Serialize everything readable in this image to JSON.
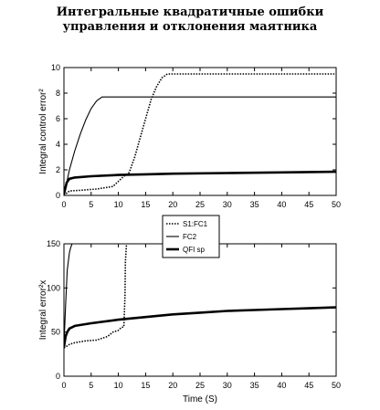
{
  "title": {
    "line1": "Интегральные квадратичные ошибки",
    "line2": "управления и отклонения маятника"
  },
  "chart_data": [
    {
      "type": "line",
      "ylabel": "Integral control error²",
      "xlabel": "",
      "xlim": [
        0,
        50
      ],
      "ylim": [
        0,
        10
      ],
      "xticks": [
        "0",
        "5",
        "10",
        "15",
        "20",
        "25",
        "30",
        "35",
        "40",
        "45",
        "50"
      ],
      "yticks": [
        "0",
        "2",
        "4",
        "6",
        "8",
        "10"
      ],
      "series": [
        {
          "name": "S1:FC1",
          "style": "dotted",
          "x": [
            0,
            1,
            3,
            6,
            9,
            11,
            12,
            13,
            14,
            15,
            16,
            17,
            18,
            19,
            20,
            50
          ],
          "y": [
            0,
            0.35,
            0.4,
            0.5,
            0.7,
            1.5,
            1.8,
            3.0,
            4.5,
            6.0,
            7.5,
            8.5,
            9.2,
            9.5,
            9.5,
            9.5
          ]
        },
        {
          "name": "FC2",
          "style": "thin",
          "x": [
            0,
            0.5,
            1,
            2,
            3,
            4,
            5,
            6,
            7,
            8,
            10,
            20,
            30,
            40,
            50
          ],
          "y": [
            0,
            1.0,
            2.0,
            3.5,
            4.8,
            5.9,
            6.8,
            7.4,
            7.7,
            7.7,
            7.7,
            7.7,
            7.7,
            7.7,
            7.7
          ]
        },
        {
          "name": "QFI sp",
          "style": "thick",
          "x": [
            0,
            0.5,
            1,
            2,
            5,
            10,
            15,
            20,
            30,
            40,
            50
          ],
          "y": [
            0.1,
            1.0,
            1.3,
            1.4,
            1.5,
            1.6,
            1.65,
            1.7,
            1.75,
            1.8,
            1.85
          ]
        }
      ]
    },
    {
      "type": "line",
      "ylabel": "Integral error²x",
      "xlabel": "Time (S)",
      "xlim": [
        0,
        50
      ],
      "ylim": [
        0,
        150
      ],
      "xticks": [
        "0",
        "5",
        "10",
        "15",
        "20",
        "25",
        "30",
        "35",
        "40",
        "45",
        "50"
      ],
      "yticks": [
        "0",
        "50",
        "100",
        "150"
      ],
      "series": [
        {
          "name": "S1:FC1",
          "style": "dotted",
          "x": [
            0,
            1,
            2,
            4,
            6,
            8,
            9,
            10,
            10.5,
            11,
            11.2,
            11.3,
            11.5
          ],
          "y": [
            32,
            36,
            38,
            40,
            41,
            45,
            50,
            52,
            55,
            56,
            90,
            130,
            150
          ]
        },
        {
          "name": "FC2",
          "style": "thin",
          "x": [
            0,
            0.3,
            0.6,
            1.0,
            1.2,
            1.5
          ],
          "y": [
            35,
            80,
            120,
            140,
            145,
            150
          ]
        },
        {
          "name": "QFI sp",
          "style": "thick",
          "x": [
            0,
            0.3,
            0.6,
            1,
            2,
            5,
            10,
            15,
            20,
            25,
            30,
            35,
            40,
            45,
            50
          ],
          "y": [
            33,
            45,
            50,
            54,
            57,
            60,
            64,
            67,
            70,
            72,
            74,
            75,
            76,
            77,
            78
          ]
        }
      ]
    }
  ],
  "legend": [
    "S1:FC1",
    "FC2",
    "QFI sp"
  ]
}
